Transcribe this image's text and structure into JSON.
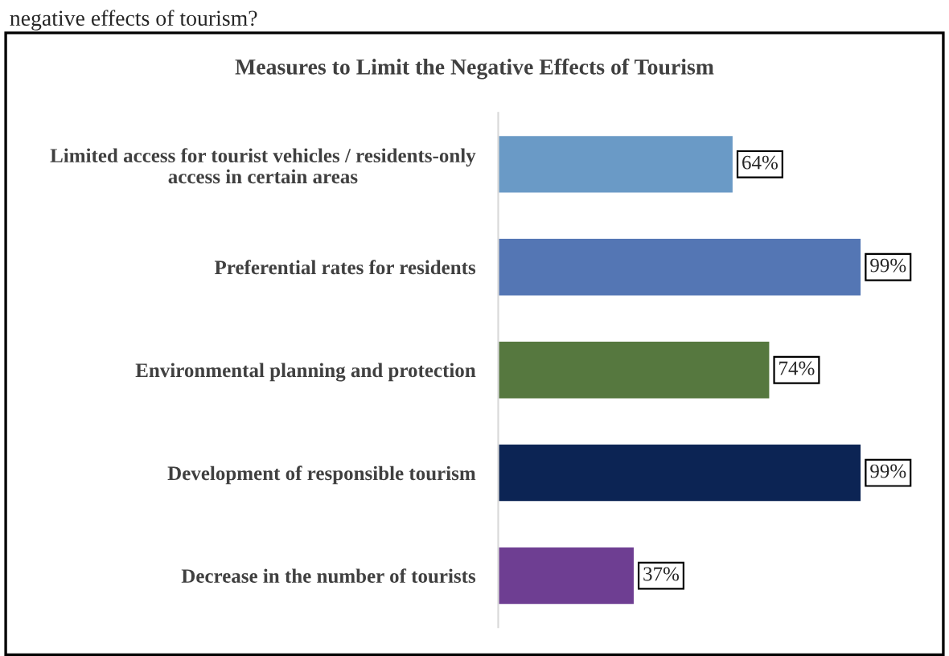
{
  "chart_data": {
    "type": "bar",
    "orientation": "horizontal",
    "title": "Measures to Limit the Negative Effects of Tourism",
    "categories": [
      "Limited access for tourist vehicles / residents-only\naccess in certain areas",
      "Preferential rates for residents",
      "Environmental planning and protection",
      "Development of responsible tourism",
      "Decrease in the number of tourists"
    ],
    "values": [
      64,
      99,
      74,
      99,
      37
    ],
    "colors": [
      "#5b9bd5",
      "#4472c4",
      "#548235",
      "#002060",
      "#7030a0"
    ],
    "value_labels": [
      "64%",
      "99%",
      "74%",
      "99%",
      "37%"
    ],
    "tick_labels": "y",
    "grid": false,
    "legend": false,
    "annotations": [
      "negative effects of tourism?"
    ]
  }
}
